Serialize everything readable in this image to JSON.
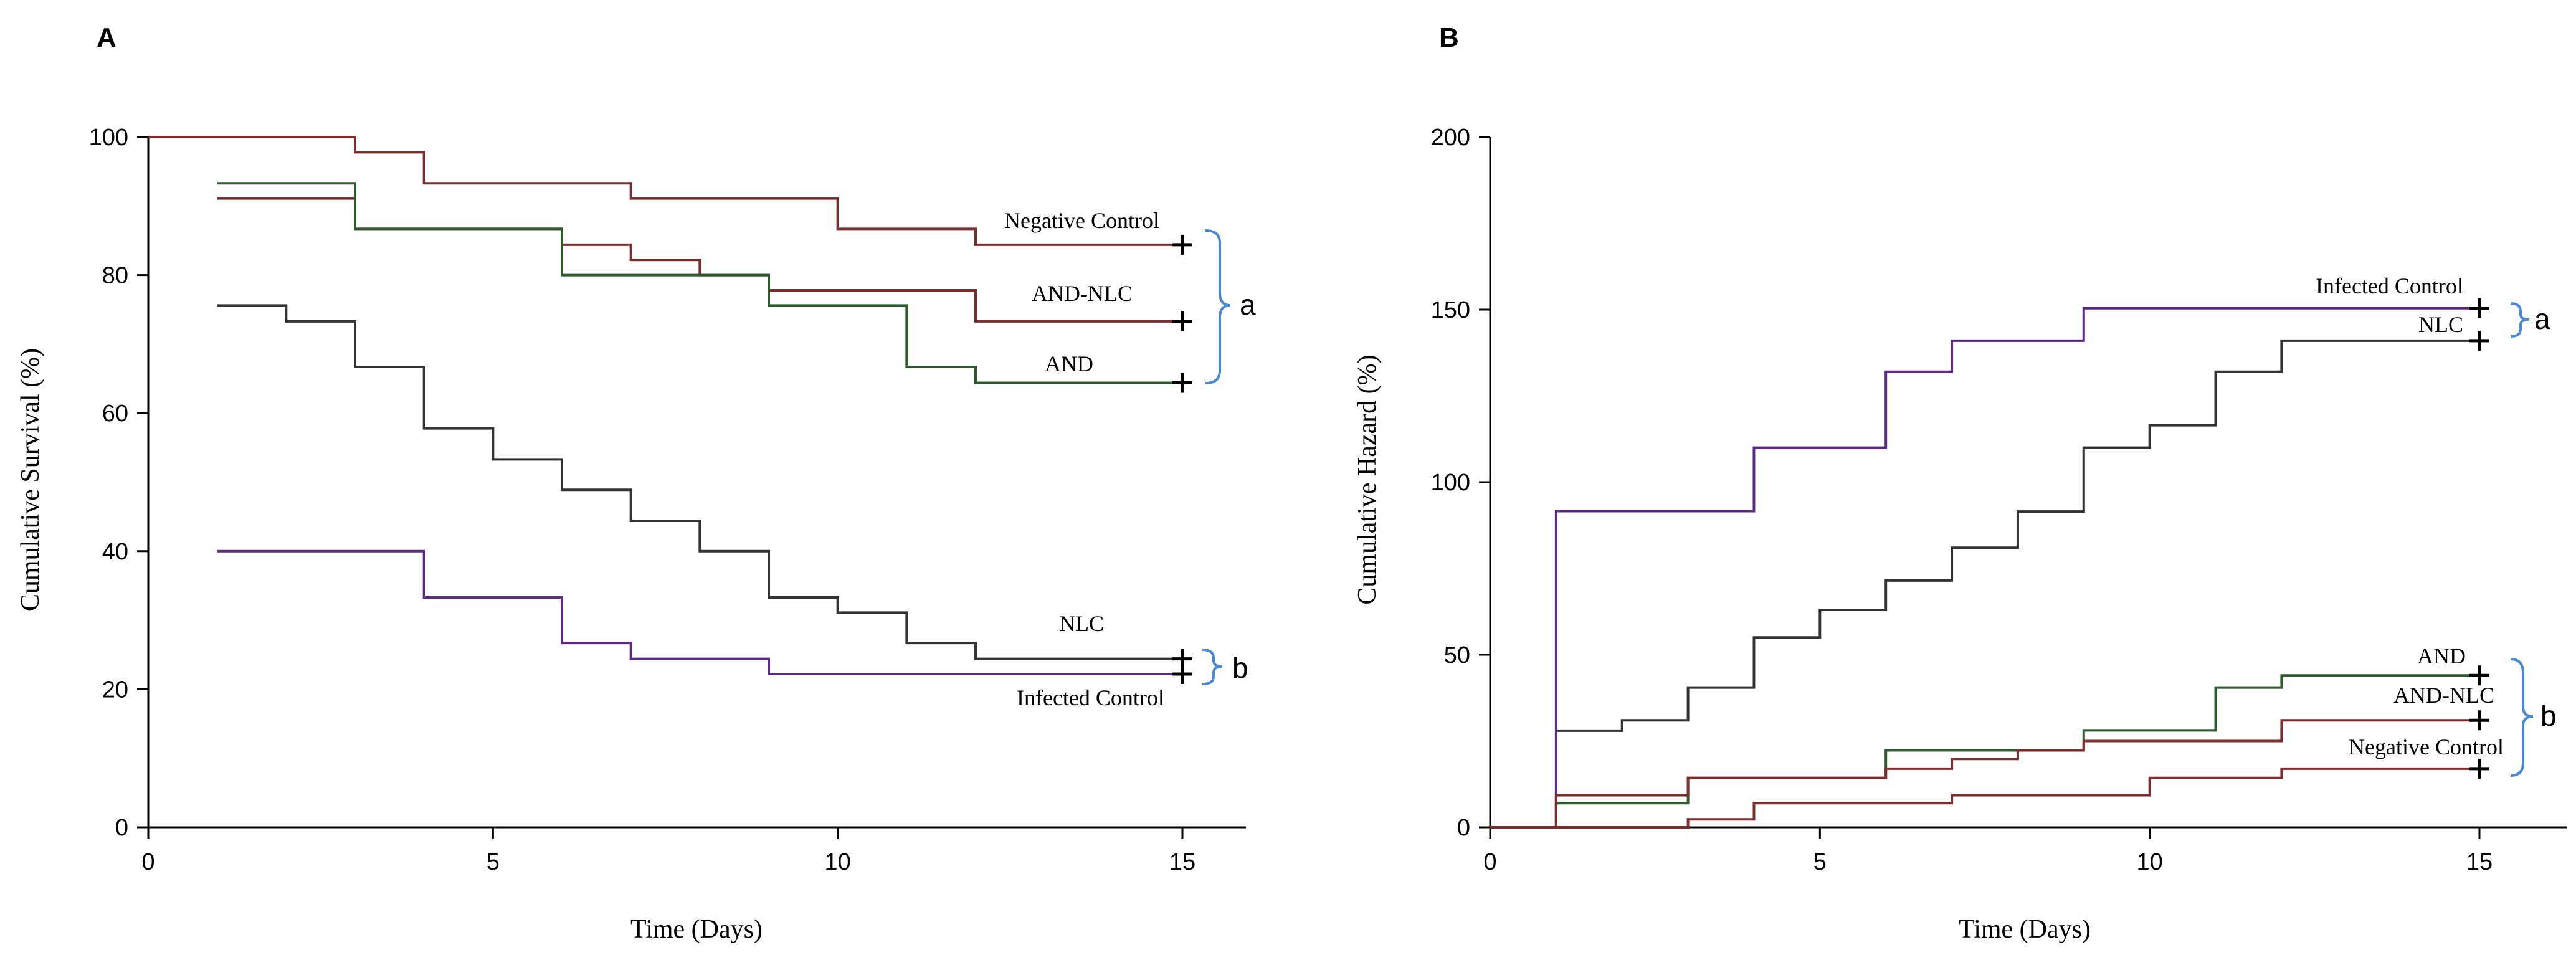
{
  "chart_data": [
    {
      "type": "line",
      "panel": "A",
      "xlabel": "Time (Days)",
      "ylabel": "Cumulative Survival (%)",
      "xlim": [
        0,
        16
      ],
      "ylim": [
        0,
        100
      ],
      "xticks": [
        0,
        5,
        10,
        15
      ],
      "yticks": [
        0,
        20,
        40,
        60,
        80,
        100
      ],
      "grid": false,
      "step": true,
      "series": [
        {
          "name": "Negative Control",
          "color": "#7a2e2e",
          "x": [
            0,
            3,
            4,
            7,
            10,
            12,
            15
          ],
          "y": [
            100,
            97.8,
            93.3,
            91.1,
            86.7,
            84.4,
            84.4
          ]
        },
        {
          "name": "AND-NLC",
          "color": "#7a2e2e",
          "x": [
            1,
            3,
            6,
            7,
            8,
            9,
            12,
            15
          ],
          "y": [
            91.1,
            86.7,
            84.4,
            82.2,
            80,
            77.8,
            73.3,
            73.3
          ]
        },
        {
          "name": "AND",
          "color": "#2e5a2e",
          "x": [
            1,
            3,
            6,
            9,
            11,
            12,
            15
          ],
          "y": [
            93.3,
            86.7,
            80,
            75.6,
            66.7,
            64.4,
            64.4
          ]
        },
        {
          "name": "NLC",
          "color": "#333333",
          "x": [
            1,
            2,
            3,
            4,
            5,
            6,
            7,
            8,
            9,
            10,
            11,
            12,
            15
          ],
          "y": [
            75.6,
            73.3,
            66.7,
            57.8,
            53.3,
            48.9,
            44.4,
            40,
            33.3,
            31.1,
            26.7,
            24.4,
            24.4
          ]
        },
        {
          "name": "Infected Control",
          "color": "#5b2a86",
          "x": [
            1,
            4,
            6,
            7,
            9,
            15
          ],
          "y": [
            40,
            33.3,
            26.7,
            24.4,
            22.2,
            22.2
          ]
        }
      ],
      "groups": [
        {
          "label": "a",
          "members": [
            "Negative Control",
            "AND-NLC",
            "AND"
          ]
        },
        {
          "label": "b",
          "members": [
            "NLC",
            "Infected Control"
          ]
        }
      ]
    },
    {
      "type": "line",
      "panel": "B",
      "xlabel": "Time (Days)",
      "ylabel": "Cumulative Hazard (%)",
      "xlim": [
        0,
        16
      ],
      "ylim": [
        0,
        200
      ],
      "xticks": [
        0,
        5,
        10,
        15
      ],
      "yticks": [
        0,
        50,
        100,
        150,
        200
      ],
      "grid": false,
      "step": true,
      "series": [
        {
          "name": "Infected Control",
          "color": "#5b2a86",
          "x": [
            0,
            1,
            4,
            6,
            7,
            9,
            15
          ],
          "y": [
            0,
            91.6,
            110,
            132,
            141,
            150.4,
            150.4
          ]
        },
        {
          "name": "NLC",
          "color": "#333333",
          "x": [
            1,
            2,
            3,
            4,
            5,
            6,
            7,
            8,
            9,
            10,
            11,
            12,
            15
          ],
          "y": [
            28,
            31,
            40.5,
            55,
            63,
            71.5,
            81,
            91.5,
            110,
            116.5,
            132,
            141,
            141
          ]
        },
        {
          "name": "AND",
          "color": "#2e5a2e",
          "x": [
            0,
            1,
            3,
            6,
            9,
            11,
            12,
            15
          ],
          "y": [
            0,
            7,
            14.3,
            22.3,
            28.1,
            40.5,
            44,
            44
          ]
        },
        {
          "name": "AND-NLC",
          "color": "#7a2e2e",
          "x": [
            0,
            1,
            3,
            6,
            7,
            8,
            9,
            12,
            15
          ],
          "y": [
            0,
            9.3,
            14.3,
            17,
            19.8,
            22.3,
            25,
            31,
            31
          ]
        },
        {
          "name": "Negative Control",
          "color": "#7a2e2e",
          "x": [
            0,
            3,
            4,
            7,
            10,
            12,
            15
          ],
          "y": [
            0,
            2.3,
            7,
            9.3,
            14.3,
            17,
            17
          ]
        }
      ],
      "groups": [
        {
          "label": "a",
          "members": [
            "Infected Control",
            "NLC"
          ]
        },
        {
          "label": "b",
          "members": [
            "AND",
            "AND-NLC",
            "Negative Control"
          ]
        }
      ]
    }
  ]
}
